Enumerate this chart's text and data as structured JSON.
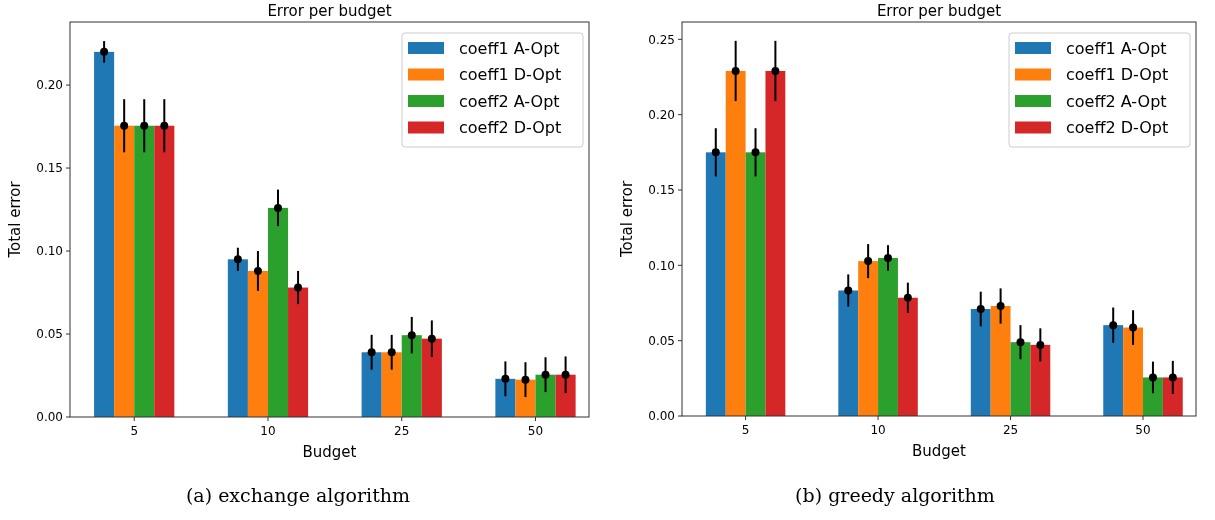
{
  "chart_data": [
    {
      "type": "bar",
      "title": "Error per budget",
      "xlabel": "Budget",
      "ylabel": "Total error",
      "categories": [
        "5",
        "10",
        "25",
        "50"
      ],
      "ylim": [
        0,
        0.238
      ],
      "yticks": [
        {
          "value": 0,
          "label": "0.00"
        },
        {
          "value": 0.05,
          "label": "0.05"
        },
        {
          "value": 0.1,
          "label": "0.10"
        },
        {
          "value": 0.15,
          "label": "0.15"
        },
        {
          "value": 0.2,
          "label": "0.20"
        }
      ],
      "legend": "top right",
      "grid": false,
      "marker": "circle",
      "annotations": [
        "(a) exchange algorithm"
      ],
      "series": [
        {
          "name": "coeff1 A-Opt",
          "color": "#1f77b4",
          "values": [
            0.22,
            0.095,
            0.039,
            0.023
          ]
        },
        {
          "name": "coeff1 D-Opt",
          "color": "#ff7f0e",
          "values": [
            0.1755,
            0.088,
            0.039,
            0.0225
          ]
        },
        {
          "name": "coeff2 A-Opt",
          "color": "#2ca02c",
          "values": [
            0.1755,
            0.126,
            0.0493,
            0.0255
          ]
        },
        {
          "name": "coeff2 D-Opt",
          "color": "#d62728",
          "values": [
            0.1755,
            0.078,
            0.0472,
            0.0255
          ]
        },
        {
          "type": "scatter",
          "color": "#000000",
          "x": [
            "5",
            "10",
            "25",
            "50"
          ],
          "values": [
            0.22,
            0.095,
            0.039,
            0.023
          ],
          "errors": [
            0.0065,
            0.007,
            0.0105,
            0.0105
          ]
        },
        {
          "type": "scatter",
          "color": "#000000",
          "x": [
            "5",
            "10",
            "25",
            "50"
          ],
          "values": [
            0.1755,
            0.088,
            0.039,
            0.0225
          ],
          "errors": [
            0.016,
            0.012,
            0.0105,
            0.0105
          ]
        },
        {
          "type": "scatter",
          "color": "#000000",
          "x": [
            "5",
            "10",
            "25",
            "50"
          ],
          "values": [
            0.1755,
            0.126,
            0.0493,
            0.0255
          ],
          "errors": [
            0.016,
            0.011,
            0.011,
            0.0105
          ]
        },
        {
          "type": "scatter",
          "color": "#000000",
          "x": [
            "5",
            "10",
            "25",
            "50"
          ],
          "values": [
            0.1755,
            0.078,
            0.0472,
            0.0255
          ],
          "errors": [
            0.016,
            0.01,
            0.011,
            0.011
          ]
        }
      ]
    },
    {
      "type": "bar",
      "title": "Error per budget",
      "xlabel": "Budget",
      "ylabel": "Total error",
      "categories": [
        "5",
        "10",
        "25",
        "50"
      ],
      "ylim": [
        0,
        0.2615
      ],
      "yticks": [
        {
          "value": 0,
          "label": "0.00"
        },
        {
          "value": 0.05,
          "label": "0.05"
        },
        {
          "value": 0.1,
          "label": "0.10"
        },
        {
          "value": 0.15,
          "label": "0.15"
        },
        {
          "value": 0.2,
          "label": "0.20"
        },
        {
          "value": 0.25,
          "label": "0.25"
        }
      ],
      "legend": "top right",
      "grid": false,
      "marker": "circle",
      "annotations": [
        "(b) greedy algorithm"
      ],
      "series": [
        {
          "name": "coeff1 A-Opt",
          "color": "#1f77b4",
          "values": [
            0.175,
            0.0833,
            0.071,
            0.0603
          ]
        },
        {
          "name": "coeff1 D-Opt",
          "color": "#ff7f0e",
          "values": [
            0.229,
            0.1028,
            0.073,
            0.0587
          ]
        },
        {
          "name": "coeff2 A-Opt",
          "color": "#2ca02c",
          "values": [
            0.175,
            0.1049,
            0.049,
            0.0256
          ]
        },
        {
          "name": "coeff2 D-Opt",
          "color": "#d62728",
          "values": [
            0.229,
            0.0785,
            0.0472,
            0.0256
          ]
        },
        {
          "type": "scatter",
          "color": "#000000",
          "x": [
            "5",
            "10",
            "25",
            "50"
          ],
          "values": [
            0.175,
            0.0833,
            0.071,
            0.0603
          ],
          "errors": [
            0.016,
            0.0107,
            0.0115,
            0.0117
          ]
        },
        {
          "type": "scatter",
          "color": "#000000",
          "x": [
            "5",
            "10",
            "25",
            "50"
          ],
          "values": [
            0.229,
            0.1028,
            0.073,
            0.0587
          ],
          "errors": [
            0.02,
            0.0113,
            0.0117,
            0.0115
          ]
        },
        {
          "type": "scatter",
          "color": "#000000",
          "x": [
            "5",
            "10",
            "25",
            "50"
          ],
          "values": [
            0.175,
            0.1049,
            0.049,
            0.0256
          ],
          "errors": [
            0.016,
            0.0085,
            0.0113,
            0.0105
          ]
        },
        {
          "type": "scatter",
          "color": "#000000",
          "x": [
            "5",
            "10",
            "25",
            "50"
          ],
          "values": [
            0.229,
            0.0785,
            0.0472,
            0.0256
          ],
          "errors": [
            0.02,
            0.01,
            0.011,
            0.011
          ]
        }
      ]
    }
  ]
}
